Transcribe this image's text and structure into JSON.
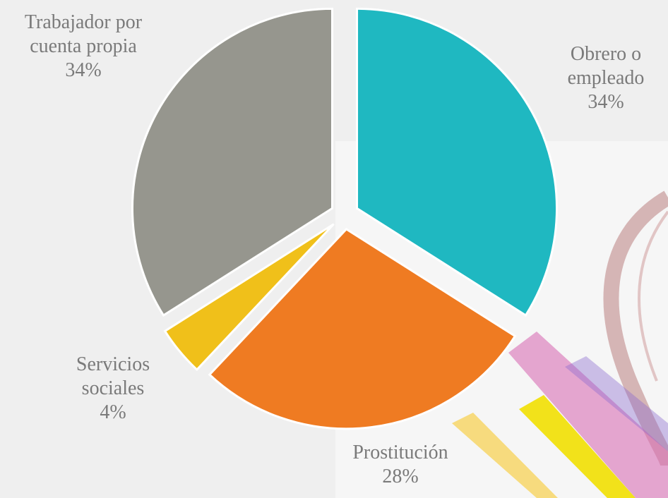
{
  "chart_data": {
    "type": "pie",
    "categories": [
      "Obrero o empleado",
      "Prostitución",
      "Servicios sociales",
      "Trabajador por cuenta propia"
    ],
    "values": [
      34,
      28,
      4,
      34
    ],
    "value_labels": [
      "34%",
      "28%",
      "4%",
      "34%"
    ],
    "colors": [
      "#1fb8c1",
      "#ef7b22",
      "#f0c01a",
      "#96968e"
    ]
  }
}
